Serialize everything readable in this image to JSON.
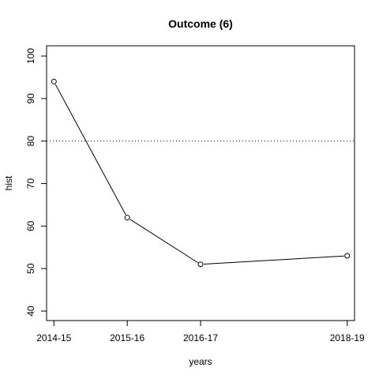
{
  "chart_data": {
    "type": "line",
    "title": "Outcome (6)",
    "xlabel": "years",
    "ylabel": "hist",
    "categories": [
      "2014-15",
      "2015-16",
      "2016-17",
      "2018-19"
    ],
    "x": [
      2014,
      2015,
      2016,
      2018
    ],
    "values": [
      94,
      62,
      51,
      53
    ],
    "xlim": [
      2013.9,
      2018.1
    ],
    "ylim": [
      40,
      100
    ],
    "yticks": [
      "40",
      "50",
      "60",
      "70",
      "80",
      "90",
      "100"
    ],
    "reference_line": {
      "y": 80,
      "style": "dotted"
    },
    "grid": false,
    "marker": "open-circle",
    "line_color": "#000000"
  }
}
